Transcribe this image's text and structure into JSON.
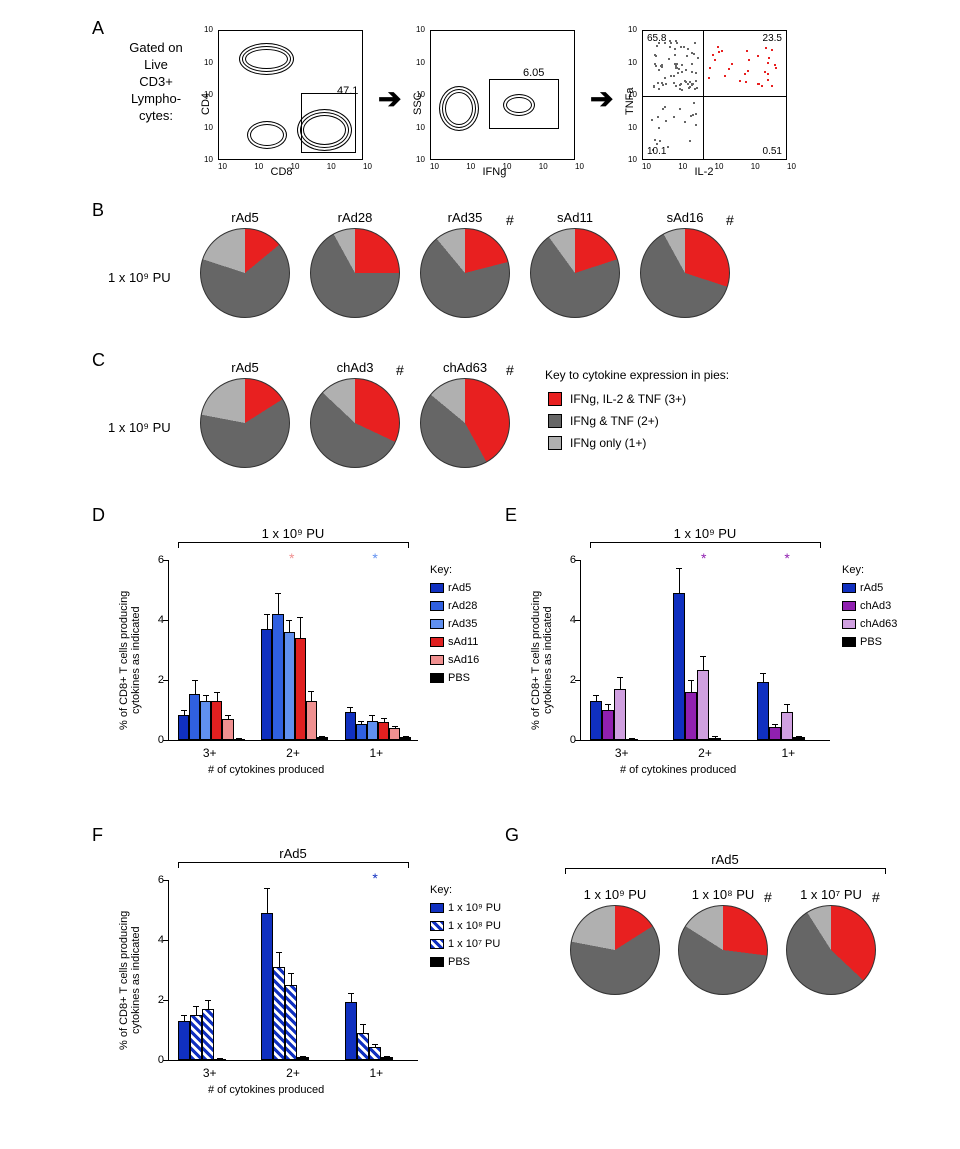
{
  "panels": {
    "A": "A",
    "B": "B",
    "C": "C",
    "D": "D",
    "E": "E",
    "F": "F",
    "G": "G"
  },
  "A": {
    "gate_text": "Gated on\nLive\nCD3+\nLympho-\ncytes:",
    "p1": {
      "x": "CD8",
      "y": "CD4",
      "gate": "47.1"
    },
    "p2": {
      "x": "IFNg",
      "y": "SSC",
      "gate": "6.05"
    },
    "p3": {
      "x": "IL-2",
      "y": "TNFa",
      "q1": "65.8",
      "q2": "23.5",
      "q3": "10.1",
      "q4": "0.51"
    }
  },
  "pie_legend": {
    "title": "Key to cytokine expression in pies:",
    "r": {
      "label": "IFNg, IL-2 & TNF (3+)",
      "color": "#e82020"
    },
    "d": {
      "label": "IFNg & TNF (2+)",
      "color": "#666666"
    },
    "l": {
      "label": "IFNg only (1+)",
      "color": "#b0b0b0"
    }
  },
  "B": {
    "dose": "1 x 10⁹ PU",
    "pies": [
      {
        "label": "rAd5",
        "r": 14,
        "d": 66,
        "l": 20,
        "hash": false
      },
      {
        "label": "rAd28",
        "r": 25,
        "d": 67,
        "l": 8,
        "hash": false
      },
      {
        "label": "rAd35",
        "r": 21,
        "d": 68,
        "l": 11,
        "hash": true
      },
      {
        "label": "sAd11",
        "r": 20,
        "d": 70,
        "l": 10,
        "hash": false
      },
      {
        "label": "sAd16",
        "r": 30,
        "d": 62,
        "l": 8,
        "hash": true
      }
    ]
  },
  "C": {
    "dose": "1 x 10⁹ PU",
    "pies": [
      {
        "label": "rAd5",
        "r": 16,
        "d": 62,
        "l": 22,
        "hash": false
      },
      {
        "label": "chAd3",
        "r": 32,
        "d": 55,
        "l": 13,
        "hash": true
      },
      {
        "label": "chAd63",
        "r": 42,
        "d": 44,
        "l": 14,
        "hash": true
      }
    ]
  },
  "D": {
    "bracket": "1 x 10⁹ PU",
    "ylabel": "% of CD8+ T cells producing\ncytokines as indicated",
    "xlabel": "# of cytokines produced",
    "ylim": 6,
    "yticks": [
      0,
      2,
      4,
      6
    ],
    "groups": [
      "3+",
      "2+",
      "1+"
    ],
    "series": [
      {
        "name": "rAd5",
        "color": "#1030c0",
        "vals": [
          0.85,
          3.7,
          0.95
        ],
        "err": [
          0.15,
          0.5,
          0.15
        ]
      },
      {
        "name": "rAd28",
        "color": "#3060e0",
        "vals": [
          1.55,
          4.2,
          0.55
        ],
        "err": [
          0.45,
          0.7,
          0.1
        ]
      },
      {
        "name": "rAd35",
        "color": "#6090f0",
        "vals": [
          1.3,
          3.6,
          0.65
        ],
        "err": [
          0.2,
          0.4,
          0.2
        ]
      },
      {
        "name": "sAd11",
        "color": "#e02020",
        "vals": [
          1.3,
          3.4,
          0.6
        ],
        "err": [
          0.3,
          0.7,
          0.15
        ]
      },
      {
        "name": "sAd16",
        "color": "#f09090",
        "vals": [
          0.7,
          1.3,
          0.4
        ],
        "err": [
          0.15,
          0.35,
          0.08
        ]
      },
      {
        "name": "PBS",
        "color": "#000000",
        "vals": [
          0.05,
          0.1,
          0.1
        ],
        "err": [
          0.02,
          0.05,
          0.05
        ]
      }
    ],
    "sig": [
      {
        "group": 1,
        "color": "#f09090",
        "sym": "*"
      },
      {
        "group": 2,
        "color": "#6090f0",
        "sym": "*"
      }
    ]
  },
  "E": {
    "bracket": "1 x 10⁹ PU",
    "ylabel": "% of CD8+ T cells producing\ncytokines as indicated",
    "xlabel": "# of cytokines produced",
    "ylim": 6,
    "yticks": [
      0,
      2,
      4,
      6
    ],
    "groups": [
      "3+",
      "2+",
      "1+"
    ],
    "series": [
      {
        "name": "rAd5",
        "color": "#1030c0",
        "vals": [
          1.3,
          4.9,
          1.95
        ],
        "err": [
          0.2,
          0.85,
          0.3
        ]
      },
      {
        "name": "chAd3",
        "color": "#9020b0",
        "vals": [
          1.0,
          1.6,
          0.45
        ],
        "err": [
          0.2,
          0.4,
          0.1
        ]
      },
      {
        "name": "chAd63",
        "color": "#d0a0e0",
        "vals": [
          1.7,
          2.35,
          0.95
        ],
        "err": [
          0.4,
          0.45,
          0.25
        ]
      },
      {
        "name": "PBS",
        "color": "#000000",
        "vals": [
          0.04,
          0.08,
          0.1
        ],
        "err": [
          0.02,
          0.04,
          0.05
        ]
      }
    ],
    "sig": [
      {
        "group": 1,
        "color": "#9020b0",
        "sym": "*"
      },
      {
        "group": 2,
        "color": "#9020b0",
        "sym": "*"
      }
    ]
  },
  "F": {
    "bracket": "rAd5",
    "ylabel": "% of CD8+ T cells producing\ncytokines as indicated",
    "xlabel": "# of cytokines produced",
    "ylim": 6,
    "yticks": [
      0,
      2,
      4,
      6
    ],
    "groups": [
      "3+",
      "2+",
      "1+"
    ],
    "series": [
      {
        "name": "1 x 10⁹ PU",
        "color": "#1030c0",
        "hatch": false,
        "vals": [
          1.3,
          4.9,
          1.95
        ],
        "err": [
          0.2,
          0.85,
          0.3
        ]
      },
      {
        "name": "1 x 10⁸ PU",
        "color": "#1030c0",
        "hatch": true,
        "vals": [
          1.5,
          3.1,
          0.9
        ],
        "err": [
          0.3,
          0.5,
          0.3
        ]
      },
      {
        "name": "1 x 10⁷ PU",
        "color": "#1030c0",
        "hatch": true,
        "vals": [
          1.7,
          2.5,
          0.45
        ],
        "err": [
          0.3,
          0.4,
          0.1
        ]
      },
      {
        "name": "PBS",
        "color": "#000000",
        "hatch": false,
        "vals": [
          0.05,
          0.1,
          0.1
        ],
        "err": [
          0.02,
          0.05,
          0.05
        ]
      }
    ],
    "sig": [
      {
        "group": 2,
        "color": "#1030c0",
        "sym": "*"
      }
    ]
  },
  "G": {
    "bracket": "rAd5",
    "pies": [
      {
        "label": "1 x 10⁹ PU",
        "r": 16,
        "d": 62,
        "l": 22,
        "hash": false
      },
      {
        "label": "1 x 10⁸ PU",
        "r": 27,
        "d": 57,
        "l": 16,
        "hash": true
      },
      {
        "label": "1 x 10⁷ PU",
        "r": 37,
        "d": 54,
        "l": 9,
        "hash": true
      }
    ]
  }
}
